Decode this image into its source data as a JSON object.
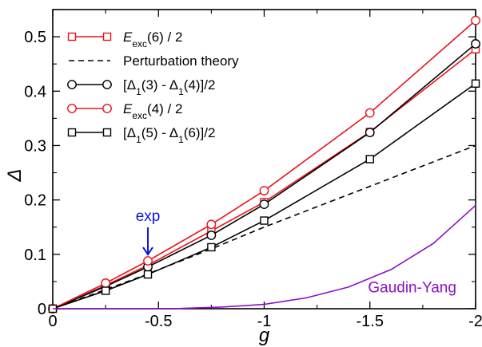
{
  "chart_data": {
    "type": "line",
    "title": "",
    "xlabel": "g",
    "ylabel": "Δ",
    "xlim": [
      0,
      -2
    ],
    "ylim": [
      0,
      0.55
    ],
    "x_ticks": [
      0,
      -0.5,
      -1,
      -1.5,
      -2
    ],
    "x_tick_labels": [
      "0",
      "-0.5",
      "-1",
      "-1.5",
      "-2"
    ],
    "y_ticks": [
      0,
      0.1,
      0.2,
      0.3,
      0.4,
      0.5
    ],
    "y_tick_labels": [
      "0",
      "0.1",
      "0.2",
      "0.3",
      "0.4",
      "0.5"
    ],
    "grid": false,
    "legend_position": "top-left",
    "series": [
      {
        "name_parts": [
          {
            "t": "E",
            "s": "i"
          },
          {
            "t": "exc",
            "s": "sub"
          },
          {
            "t": "(6) / 2",
            "s": "n"
          }
        ],
        "color": "#e8141c",
        "marker": "square",
        "dash": "solid",
        "x": [
          0,
          -0.25,
          -0.45,
          -0.75,
          -1.0,
          -1.5,
          -2.0
        ],
        "y": [
          0,
          0.043,
          0.08,
          0.143,
          0.196,
          0.325,
          0.477
        ]
      },
      {
        "name_parts": [
          {
            "t": "Perturbation theory",
            "s": "n"
          }
        ],
        "color": "#000000",
        "marker": "none",
        "dash": "dashed",
        "x": [
          0,
          -0.25,
          -0.45,
          -0.75,
          -1.0,
          -1.5,
          -2.0
        ],
        "y": [
          0,
          0.035,
          0.064,
          0.11,
          0.15,
          0.225,
          0.3
        ]
      },
      {
        "name_parts": [
          {
            "t": "[Δ",
            "s": "n"
          },
          {
            "t": "1",
            "s": "sub"
          },
          {
            "t": "(3) - Δ",
            "s": "n"
          },
          {
            "t": "1",
            "s": "sub"
          },
          {
            "t": "(4)]/2",
            "s": "n"
          }
        ],
        "color": "#000000",
        "marker": "circle",
        "dash": "solid",
        "x": [
          0,
          -0.25,
          -0.45,
          -0.75,
          -1.0,
          -1.5,
          -2.0
        ],
        "y": [
          0,
          0.041,
          0.077,
          0.135,
          0.192,
          0.324,
          0.487
        ]
      },
      {
        "name_parts": [
          {
            "t": "E",
            "s": "i"
          },
          {
            "t": "exc",
            "s": "sub"
          },
          {
            "t": "(4) / 2",
            "s": "n"
          }
        ],
        "color": "#e8141c",
        "marker": "circle",
        "dash": "solid",
        "x": [
          0,
          -0.25,
          -0.45,
          -0.75,
          -1.0,
          -1.5,
          -2.0
        ],
        "y": [
          0,
          0.047,
          0.088,
          0.155,
          0.217,
          0.36,
          0.53
        ]
      },
      {
        "name_parts": [
          {
            "t": "[Δ",
            "s": "n"
          },
          {
            "t": "1",
            "s": "sub"
          },
          {
            "t": "(5) - Δ",
            "s": "n"
          },
          {
            "t": "1",
            "s": "sub"
          },
          {
            "t": "(6)]/2",
            "s": "n"
          }
        ],
        "color": "#000000",
        "marker": "square",
        "dash": "solid",
        "x": [
          0,
          -0.25,
          -0.45,
          -0.75,
          -1.0,
          -1.5,
          -2.0
        ],
        "y": [
          0,
          0.033,
          0.063,
          0.113,
          0.162,
          0.275,
          0.414
        ]
      },
      {
        "name_parts": [],
        "color": "#8b10c8",
        "marker": "none",
        "dash": "solid",
        "x": [
          0,
          -0.4,
          -0.6,
          -0.8,
          -1.0,
          -1.2,
          -1.4,
          -1.6,
          -1.8,
          -2.0
        ],
        "y": [
          0,
          0.0,
          0.0005,
          0.003,
          0.008,
          0.02,
          0.04,
          0.072,
          0.12,
          0.19
        ]
      }
    ],
    "annotations": [
      {
        "text": "exp",
        "color": "#0a14dc",
        "x": -0.45,
        "y": 0.085,
        "kind": "arrow"
      },
      {
        "text": "Gaudin-Yang",
        "color": "#8b10c8",
        "x": -1.7,
        "y": 0.03,
        "kind": "label"
      }
    ]
  }
}
